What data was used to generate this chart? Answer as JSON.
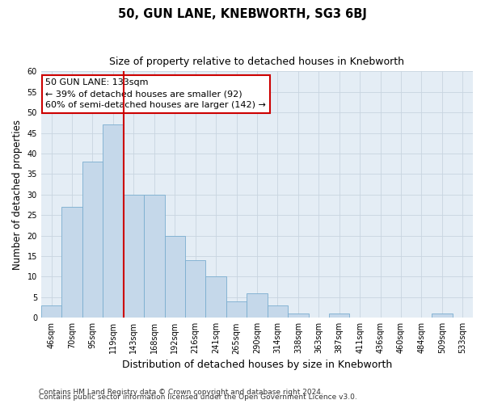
{
  "title": "50, GUN LANE, KNEBWORTH, SG3 6BJ",
  "subtitle": "Size of property relative to detached houses in Knebworth",
  "xlabel": "Distribution of detached houses by size in Knebworth",
  "ylabel": "Number of detached properties",
  "categories": [
    "46sqm",
    "70sqm",
    "95sqm",
    "119sqm",
    "143sqm",
    "168sqm",
    "192sqm",
    "216sqm",
    "241sqm",
    "265sqm",
    "290sqm",
    "314sqm",
    "338sqm",
    "363sqm",
    "387sqm",
    "411sqm",
    "436sqm",
    "460sqm",
    "484sqm",
    "509sqm",
    "533sqm"
  ],
  "values": [
    3,
    27,
    38,
    47,
    30,
    30,
    20,
    14,
    10,
    4,
    6,
    3,
    1,
    0,
    1,
    0,
    0,
    0,
    0,
    1,
    0
  ],
  "bar_color": "#c5d8ea",
  "bar_edge_color": "#7aadcf",
  "grid_color": "#c8d4e0",
  "background_color": "#e4edf5",
  "ylim": [
    0,
    60
  ],
  "yticks": [
    0,
    5,
    10,
    15,
    20,
    25,
    30,
    35,
    40,
    45,
    50,
    55,
    60
  ],
  "annotation_text": "50 GUN LANE: 133sqm\n← 39% of detached houses are smaller (92)\n60% of semi-detached houses are larger (142) →",
  "annotation_box_color": "#ffffff",
  "annotation_box_edge": "#cc0000",
  "vline_color": "#cc0000",
  "footer1": "Contains HM Land Registry data © Crown copyright and database right 2024.",
  "footer2": "Contains public sector information licensed under the Open Government Licence v3.0.",
  "title_fontsize": 10.5,
  "subtitle_fontsize": 9,
  "tick_fontsize": 7,
  "ylabel_fontsize": 8.5,
  "xlabel_fontsize": 9,
  "annotation_fontsize": 8,
  "footer_fontsize": 6.5
}
